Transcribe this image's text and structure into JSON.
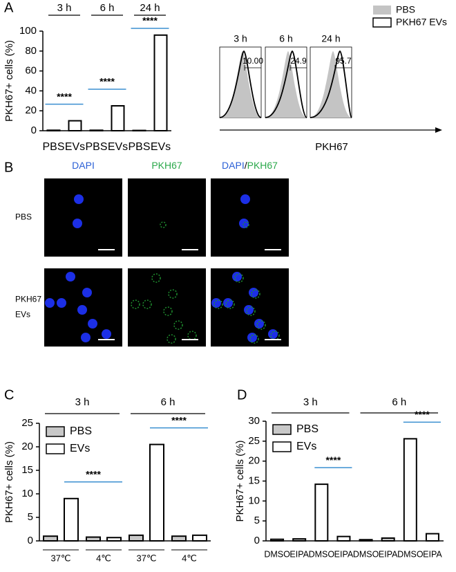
{
  "chart_data": [
    {
      "type": "bar",
      "panel": "A",
      "ylabel": "PKH67+ cells (%)",
      "groups": [
        "3 h",
        "6 h",
        "24 h"
      ],
      "categories": [
        "PBS",
        "EVs",
        "PBS",
        "EVs",
        "PBS",
        "EVs"
      ],
      "values": [
        0.5,
        10,
        0.5,
        25,
        0.3,
        96
      ],
      "color": "#ffffff",
      "significance": [
        "****",
        "****",
        "****"
      ],
      "ylim": [
        0,
        100
      ],
      "yticks": [
        0,
        20,
        40,
        60,
        80,
        100
      ]
    },
    {
      "type": "bar",
      "panel": "C",
      "ylabel": "PKH67+ cells (%)",
      "groups": [
        "3 h",
        "6 h"
      ],
      "categories": [
        "37℃",
        "4℃",
        "37℃",
        "4℃"
      ],
      "series": [
        {
          "name": "PBS",
          "color": "#c8c8c8",
          "values": [
            1.0,
            0.8,
            1.2,
            1.0
          ]
        },
        {
          "name": "EVs",
          "color": "#ffffff",
          "values": [
            9.0,
            0.7,
            20.5,
            1.2
          ]
        }
      ],
      "significance": [
        "****",
        "****"
      ],
      "ylim": [
        0,
        25
      ],
      "yticks": [
        0,
        5,
        10,
        15,
        20,
        25
      ]
    },
    {
      "type": "bar",
      "panel": "D",
      "ylabel": "PKH67+ cells (%)",
      "groups": [
        "3 h",
        "6 h"
      ],
      "categories": [
        "DMSO",
        "EIPA",
        "DMSO",
        "EIPA",
        "DMSO",
        "EIPA",
        "DMSO",
        "EIPA"
      ],
      "series": [
        {
          "name": "PBS",
          "color": "#c8c8c8",
          "values": [
            0.4,
            0.5,
            null,
            null,
            0.3,
            0.7,
            null,
            null
          ]
        },
        {
          "name": "EVs",
          "color": "#ffffff",
          "values": [
            null,
            null,
            14.2,
            1.1,
            null,
            null,
            25.6,
            1.8
          ]
        }
      ],
      "significance": [
        "****",
        "****"
      ],
      "ylim": [
        0,
        30
      ],
      "yticks": [
        0,
        5,
        10,
        15,
        20,
        25,
        30
      ]
    }
  ],
  "flow": {
    "legend": [
      "PBS",
      "PKH67 EVs"
    ],
    "xlabel": "PKH67",
    "plots": [
      {
        "title": "3 h",
        "gate": "10.00"
      },
      {
        "title": "6 h",
        "gate": "24.9"
      },
      {
        "title": "24 h",
        "gate": "95.7"
      }
    ]
  },
  "micro": {
    "panel": "B",
    "columns": [
      [
        "DAPI"
      ],
      [
        "PKH67"
      ],
      [
        "DAPI",
        "/",
        "PKH67"
      ]
    ],
    "rows": [
      [
        "PBS"
      ],
      [
        "PKH67",
        "EVs"
      ]
    ]
  }
}
